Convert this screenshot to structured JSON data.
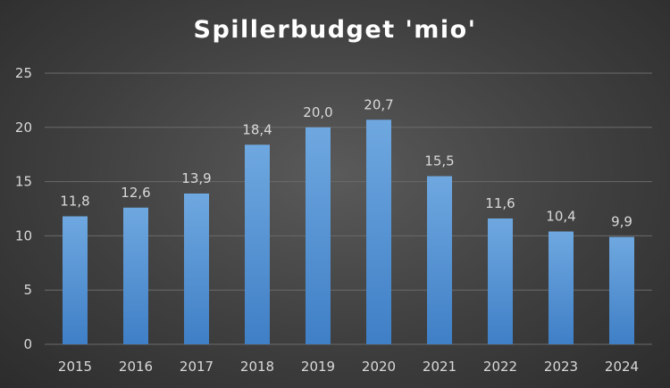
{
  "chart_data": {
    "type": "bar",
    "title": "Spillerbudget 'mio'",
    "xlabel": "",
    "ylabel": "",
    "categories": [
      "2015",
      "2016",
      "2017",
      "2018",
      "2019",
      "2020",
      "2021",
      "2022",
      "2023",
      "2024"
    ],
    "values": [
      11.8,
      12.6,
      13.9,
      18.4,
      20.0,
      20.7,
      15.5,
      11.6,
      10.4,
      9.9
    ],
    "data_labels": [
      "11,8",
      "12,6",
      "13,9",
      "18,4",
      "20,0",
      "20,7",
      "15,5",
      "11,6",
      "10,4",
      "9,9"
    ],
    "ylim": [
      0,
      25
    ],
    "yticks": [
      "0",
      "5",
      "10",
      "15",
      "20",
      "25"
    ],
    "grid": true,
    "legend": "none",
    "colors": {
      "bar_top": "#6fa8e0",
      "bar_bottom": "#3f7fc6",
      "gridline": "#6a6a6a",
      "text": "#d9d9d9",
      "title": "#ffffff"
    }
  }
}
